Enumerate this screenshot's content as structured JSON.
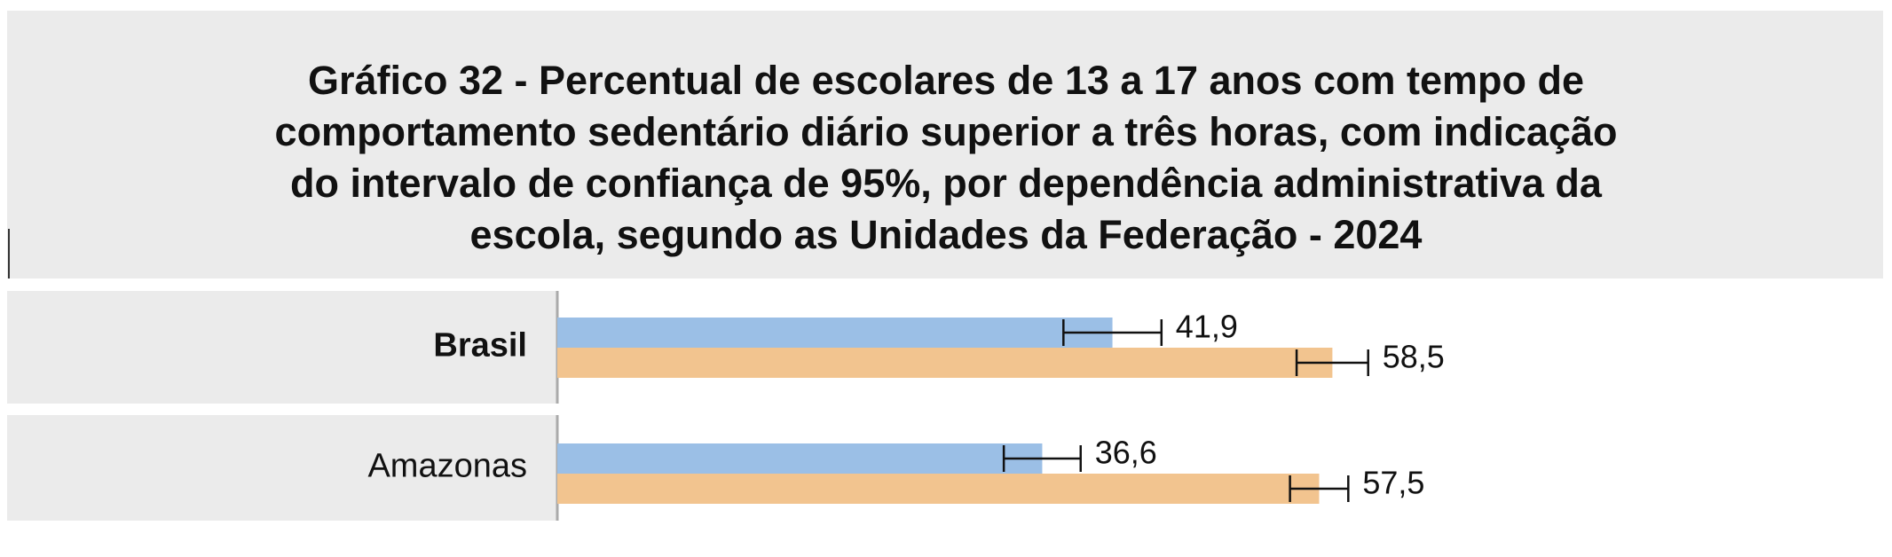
{
  "chart_data": {
    "type": "bar",
    "title": [
      "Gráfico 32 - Percentual de escolares de 13 a 17 anos com tempo de",
      "comportamento sedentário diário superior a três horas, com indicação",
      "do intervalo de confiança de 95%, por dependência administrativa da",
      "escola, segundo as Unidades da Federação - 2024"
    ],
    "categories": [
      "Brasil",
      "Amazonas"
    ],
    "series": [
      {
        "color": "#9bbfe6",
        "values": [
          41.9,
          36.6
        ],
        "value_labels": [
          "41,9",
          "36,6"
        ],
        "errors": [
          3.7,
          2.9
        ]
      },
      {
        "color": "#f2c48f",
        "values": [
          58.5,
          57.5
        ],
        "value_labels": [
          "58,5",
          "57,5"
        ],
        "errors": [
          2.7,
          2.2
        ]
      }
    ]
  }
}
